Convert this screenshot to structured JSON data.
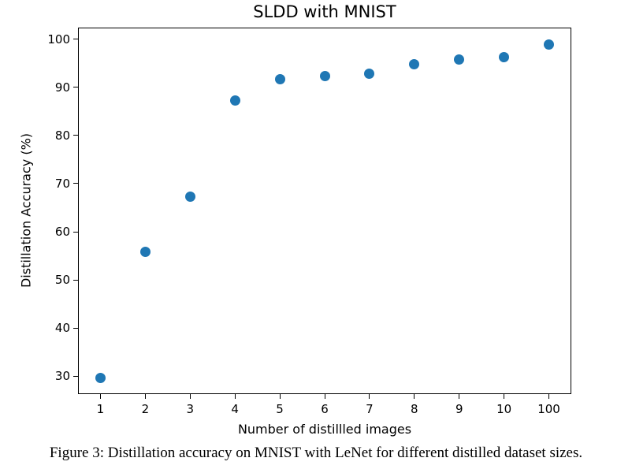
{
  "page": {
    "background": "#ffffff"
  },
  "chart_data": {
    "type": "scatter",
    "title": "SLDD with MNIST",
    "xlabel": "Number of distillled images",
    "ylabel": "Distillation Accuracy (%)",
    "categories": [
      "1",
      "2",
      "3",
      "4",
      "5",
      "6",
      "7",
      "8",
      "9",
      "10",
      "100"
    ],
    "values": [
      29.7,
      55.8,
      67.3,
      87.2,
      91.7,
      92.3,
      92.8,
      94.8,
      95.8,
      96.3,
      98.9
    ],
    "yticks": [
      30,
      40,
      50,
      60,
      70,
      80,
      90,
      100
    ],
    "ylim": [
      26.3,
      102.4
    ],
    "grid": false,
    "legend": null,
    "marker_color": "#1f77b4",
    "axis_color": "#000000"
  },
  "caption": {
    "text": "Figure 3: Distillation accuracy on MNIST with LeNet for different distilled dataset sizes."
  }
}
